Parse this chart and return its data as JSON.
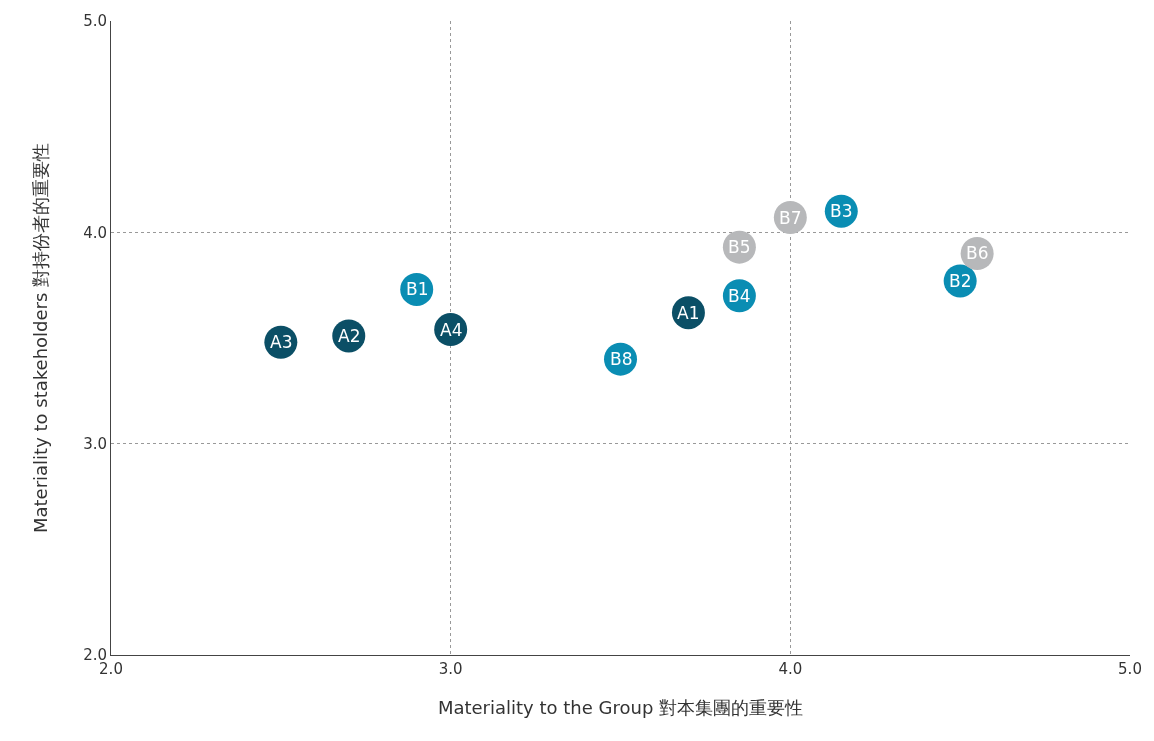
{
  "chart_data": {
    "type": "scatter",
    "xlabel": "Materiality to the Group 對本集團的重要性",
    "ylabel": "Materiality to stakeholders 對持份者的重要性",
    "series": [
      {
        "color": "#0b4f66",
        "x": [
          3.7,
          2.7,
          2.5,
          3.0
        ],
        "values": [
          3.62,
          3.51,
          3.48,
          3.54
        ]
      },
      {
        "color": "#0a8db3",
        "x": [
          2.9,
          4.5,
          4.15,
          3.85,
          3.5
        ],
        "values": [
          3.73,
          3.77,
          4.1,
          3.7,
          3.4
        ]
      },
      {
        "color": "#b7b8ba",
        "x": [
          3.85,
          4.55,
          4.0
        ],
        "values": [
          3.93,
          3.9,
          4.07
        ]
      }
    ],
    "annotations": [
      {
        "text": "A1",
        "x": 3.7,
        "y": 3.62
      },
      {
        "text": "A2",
        "x": 2.7,
        "y": 3.51
      },
      {
        "text": "A3",
        "x": 2.5,
        "y": 3.48
      },
      {
        "text": "A4",
        "x": 3.0,
        "y": 3.54
      },
      {
        "text": "B1",
        "x": 2.9,
        "y": 3.73
      },
      {
        "text": "B2",
        "x": 4.5,
        "y": 3.77
      },
      {
        "text": "B3",
        "x": 4.15,
        "y": 4.1
      },
      {
        "text": "B4",
        "x": 3.85,
        "y": 3.7
      },
      {
        "text": "B8",
        "x": 3.5,
        "y": 3.4
      },
      {
        "text": "B5",
        "x": 3.85,
        "y": 3.93
      },
      {
        "text": "B6",
        "x": 4.55,
        "y": 3.9
      },
      {
        "text": "B7",
        "x": 4.0,
        "y": 4.07
      }
    ],
    "xlim": [
      2,
      5
    ],
    "xticks": [
      {
        "value": 2,
        "label": "2.0"
      },
      {
        "value": 3,
        "label": "3.0"
      },
      {
        "value": 4,
        "label": "4.0"
      },
      {
        "value": 5,
        "label": "5.0"
      }
    ],
    "ylim": [
      2,
      5
    ],
    "yticks": [
      {
        "value": 2,
        "label": "2.0"
      },
      {
        "value": 3,
        "label": "3.0"
      },
      {
        "value": 4,
        "label": "4.0"
      },
      {
        "value": 5,
        "label": "5.0"
      }
    ],
    "grid": true,
    "marker": "circle"
  }
}
